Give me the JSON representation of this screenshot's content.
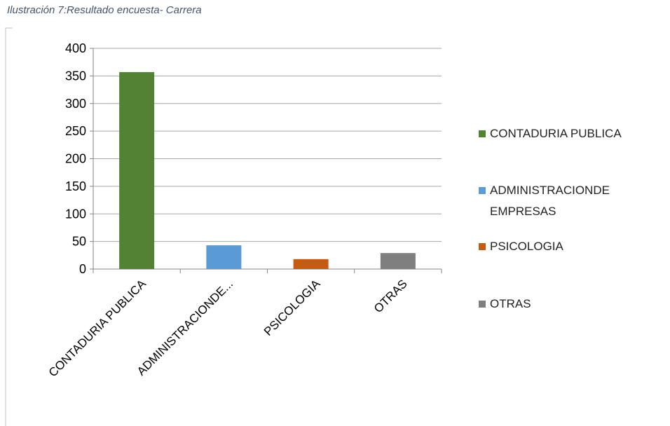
{
  "chart_data": {
    "type": "bar",
    "title": "Ilustración 7:Resultado encuesta- Carrera",
    "categories": [
      "CONTADURIA PUBLICA",
      "ADMINISTRACIONDE...",
      "PSICOLOGIA",
      "OTRAS"
    ],
    "values": [
      357,
      43,
      18,
      29
    ],
    "colors": [
      "#548235",
      "#5b9bd5",
      "#c55a11",
      "#7f7f7f"
    ],
    "legend": [
      "CONTADURIA PUBLICA",
      "ADMINISTRACIONDE EMPRESAS",
      "PSICOLOGIA",
      "OTRAS"
    ],
    "ylim": [
      0,
      400
    ],
    "yticks": [
      0,
      50,
      100,
      150,
      200,
      250,
      300,
      350,
      400
    ],
    "grid": true
  }
}
